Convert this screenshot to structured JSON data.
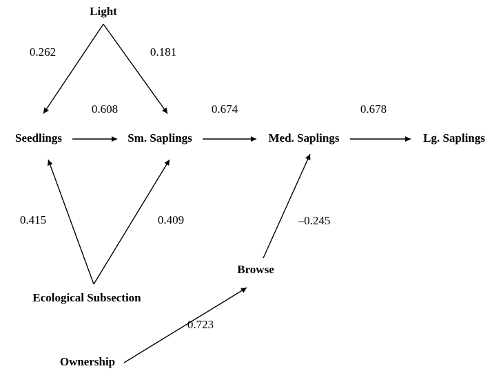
{
  "nodes": [
    {
      "label": "Light"
    },
    {
      "label": "Seedlings"
    },
    {
      "label": "Sm. Saplings"
    },
    {
      "label": "Med. Saplings"
    },
    {
      "label": "Lg. Saplings"
    },
    {
      "label": "Browse"
    },
    {
      "label": "Ecological Subsection"
    },
    {
      "label": "Ownership"
    }
  ],
  "edges": [
    {
      "label": "0.262"
    },
    {
      "label": "0.181"
    },
    {
      "label": "0.608"
    },
    {
      "label": "0.674"
    },
    {
      "label": "0.678"
    },
    {
      "label": "0.415"
    },
    {
      "label": "0.409"
    },
    {
      "label": "–0.245"
    },
    {
      "label": "0.723"
    }
  ]
}
